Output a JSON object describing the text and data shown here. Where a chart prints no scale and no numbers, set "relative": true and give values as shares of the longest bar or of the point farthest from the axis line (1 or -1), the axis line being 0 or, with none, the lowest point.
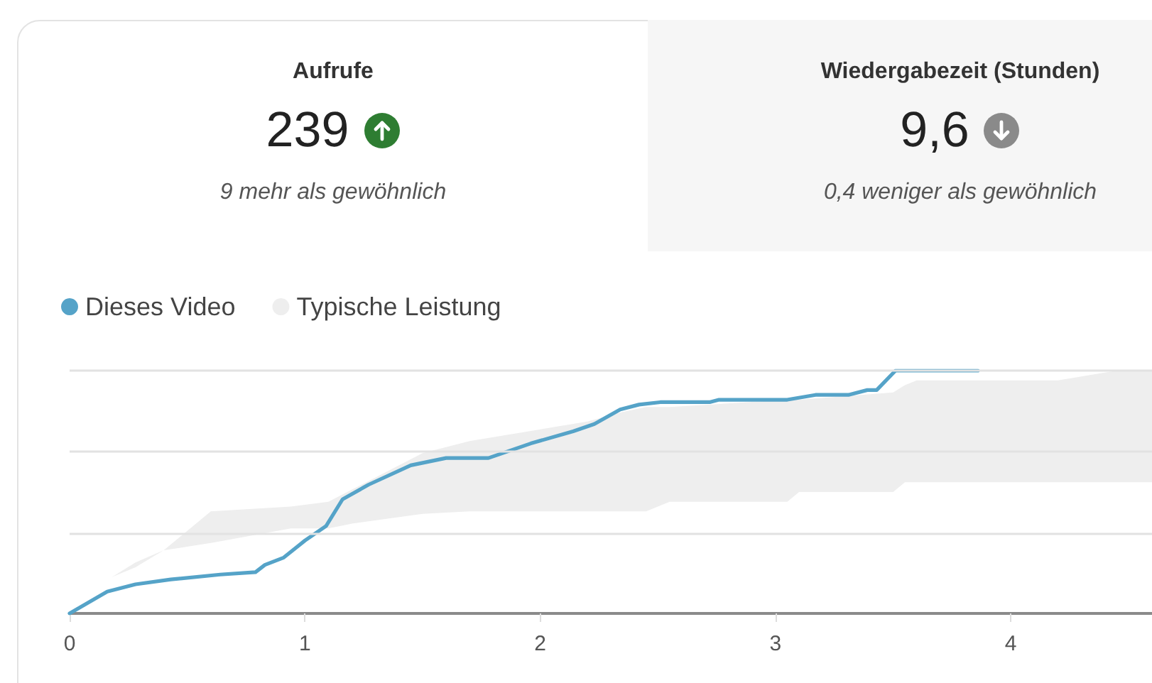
{
  "chart_data": [
    {
      "type": "other",
      "title": "Aufrufe",
      "annotations": [
        "239",
        "9 mehr als gewöhnlich"
      ]
    },
    {
      "type": "other",
      "title": "Wiedergabezeit (Stunden)",
      "annotations": [
        "9,6",
        "0,4 weniger als gewöhnlich"
      ]
    },
    {
      "type": "line",
      "relative": true,
      "xlim": [
        0,
        4.6
      ],
      "xticks": [
        0,
        1,
        2,
        3,
        4
      ],
      "ref_lines": [
        {
          "axis": "y",
          "value": 0.333,
          "color": "#e2e2e2"
        },
        {
          "axis": "y",
          "value": 0.667,
          "color": "#e2e2e2"
        },
        {
          "axis": "y",
          "value": 1,
          "color": "#e2e2e2"
        }
      ],
      "legend": "top left",
      "marker": "none",
      "line_style": "solid",
      "series": [
        {
          "name": "Dieses Video",
          "color": "#55a3c8",
          "x": [
            0,
            0.16,
            0.28,
            0.43,
            0.64,
            0.79,
            0.83,
            0.91,
            1.0,
            1.09,
            1.16,
            1.27,
            1.45,
            1.6,
            1.78,
            1.87,
            1.96,
            2.14,
            2.23,
            2.34,
            2.42,
            2.51,
            2.72,
            2.76,
            3.05,
            3.17,
            3.31,
            3.39,
            3.43,
            3.51,
            3.86
          ],
          "values": [
            0,
            0.09,
            0.12,
            0.14,
            0.16,
            0.17,
            0.2,
            0.23,
            0.3,
            0.36,
            0.47,
            0.53,
            0.61,
            0.64,
            0.64,
            0.67,
            0.7,
            0.75,
            0.78,
            0.84,
            0.86,
            0.87,
            0.87,
            0.88,
            0.88,
            0.9,
            0.9,
            0.92,
            0.92,
            1.0,
            1.0
          ]
        },
        {
          "name": "Typische Leistung",
          "type": "area",
          "color": "#eeeeee",
          "values": [
            null,
            null,
            null,
            null,
            null,
            null,
            null,
            null,
            null,
            null,
            null,
            null,
            null,
            null,
            null,
            null,
            null,
            null,
            null,
            null,
            null,
            null
          ],
          "x": [
            0,
            0.18,
            0.28,
            0.4,
            0.6,
            0.94,
            1.1,
            1.2,
            1.5,
            1.7,
            2.2,
            2.35,
            2.45,
            2.55,
            3.05,
            3.1,
            3.5,
            3.55,
            3.6,
            4.2,
            4.45,
            4.6
          ],
          "lower": [
            0,
            0.15,
            0.19,
            0.26,
            0.29,
            0.35,
            0.35,
            0.37,
            0.41,
            0.42,
            0.42,
            0.42,
            0.42,
            0.46,
            0.46,
            0.5,
            0.5,
            0.54,
            0.54,
            0.54,
            0.54,
            0.54
          ],
          "upper": [
            0,
            0.15,
            0.21,
            0.26,
            0.42,
            0.44,
            0.46,
            0.51,
            0.66,
            0.71,
            0.79,
            0.83,
            0.85,
            0.85,
            0.88,
            0.88,
            0.91,
            0.94,
            0.96,
            0.96,
            1.0,
            1.0
          ]
        }
      ]
    }
  ]
}
